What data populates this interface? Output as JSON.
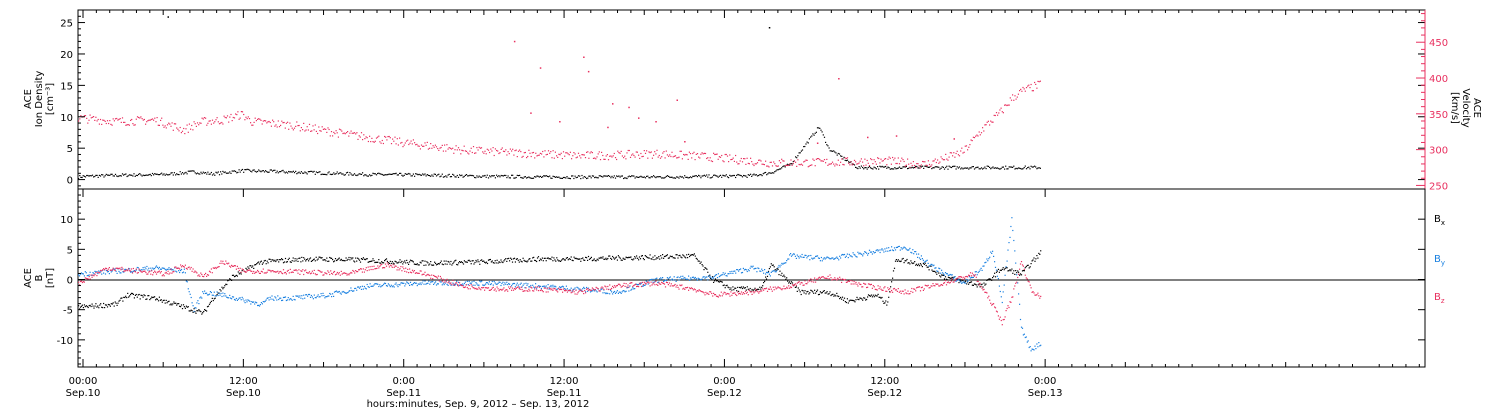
{
  "colors": {
    "density": "#000000",
    "velocity": "#e8305f",
    "bx": "#000000",
    "by": "#1a80e0",
    "bz": "#e8305f",
    "axis": "#000000"
  },
  "chart_data": [
    {
      "type": "scatter",
      "ylabel_lines": [
        "ACE",
        "Ion Density",
        "[cm⁻³]"
      ],
      "y2label_lines": [
        "ACE",
        "Velocity",
        "[km/s]"
      ],
      "ylim": [
        -1.5,
        27
      ],
      "yticks": [
        0,
        5,
        10,
        15,
        20,
        25
      ],
      "y2lim": [
        245,
        495
      ],
      "y2ticks": [
        250,
        300,
        350,
        400,
        450
      ],
      "series": [
        {
          "key": "density",
          "axis": "left",
          "knots": [
            [
              0,
              0.5
            ],
            [
              0.5,
              0.6
            ],
            [
              5,
              0.8
            ],
            [
              9,
              0.9
            ],
            [
              12,
              1.3
            ],
            [
              14,
              1.0
            ],
            [
              17,
              1.5
            ],
            [
              22,
              1.3
            ],
            [
              30,
              0.9
            ],
            [
              36,
              0.8
            ],
            [
              42,
              0.6
            ],
            [
              48,
              0.5
            ],
            [
              54,
              0.5
            ],
            [
              60,
              0.5
            ],
            [
              66,
              0.6
            ],
            [
              70,
              0.7
            ],
            [
              72,
              1.2
            ],
            [
              74,
              2.5
            ],
            [
              76,
              6.5
            ],
            [
              77,
              8.5
            ],
            [
              78,
              5.0
            ],
            [
              80,
              3.0
            ],
            [
              81,
              2.0
            ]
          ]
        },
        {
          "key": "velocity",
          "axis": "right",
          "knots": [
            [
              0,
              345
            ],
            [
              4,
              340
            ],
            [
              8,
              342
            ],
            [
              11,
              328
            ],
            [
              12,
              335
            ],
            [
              13,
              340
            ],
            [
              15,
              342
            ],
            [
              17,
              350
            ],
            [
              18,
              340
            ],
            [
              22,
              335
            ],
            [
              28,
              322
            ],
            [
              34,
              310
            ],
            [
              40,
              300
            ],
            [
              46,
              296
            ],
            [
              52,
              292
            ],
            [
              56,
              293
            ],
            [
              60,
              295
            ],
            [
              66,
              290
            ],
            [
              72,
              282
            ],
            [
              78,
              283
            ],
            [
              84,
              285
            ],
            [
              88,
              280
            ],
            [
              90,
              288
            ],
            [
              92,
              298
            ],
            [
              94,
              330
            ],
            [
              96,
              355
            ],
            [
              97,
              372
            ],
            [
              98,
              382
            ],
            [
              100,
              392
            ]
          ]
        }
      ],
      "spike_points": [
        [
          9.3,
          26
        ],
        [
          71.8,
          24.3
        ],
        [
          45.3,
          452
        ],
        [
          52.5,
          430
        ],
        [
          48.0,
          415
        ],
        [
          53.0,
          410
        ],
        [
          79.0,
          400
        ],
        [
          62.2,
          370
        ],
        [
          55.5,
          365
        ],
        [
          57.2,
          360
        ],
        [
          47.0,
          352
        ],
        [
          55.0,
          332
        ],
        [
          60.0,
          340
        ],
        [
          63.0,
          312
        ],
        [
          76.8,
          310
        ],
        [
          82.0,
          318
        ],
        [
          85.0,
          320
        ],
        [
          91.0,
          316
        ],
        [
          58.2,
          345
        ],
        [
          50.0,
          340
        ]
      ]
    },
    {
      "type": "line",
      "ylabel_lines": [
        "ACE",
        "B",
        "[nT]"
      ],
      "ylim": [
        -14.5,
        15
      ],
      "yticks": [
        -10,
        -5,
        0,
        5,
        10
      ],
      "series": [
        {
          "key": "bx",
          "name": "B",
          "subscript": "x",
          "knots": [
            [
              0,
              -4.5
            ],
            [
              4,
              -4.0
            ],
            [
              5,
              -2.5
            ],
            [
              8,
              -3.0
            ],
            [
              13,
              -5.5
            ],
            [
              14,
              -3.0
            ],
            [
              16,
              0.5
            ],
            [
              19,
              3.0
            ],
            [
              24,
              3.5
            ],
            [
              30,
              3.3
            ],
            [
              36,
              2.8
            ],
            [
              42,
              3.0
            ],
            [
              48,
              3.5
            ],
            [
              52,
              3.5
            ],
            [
              60,
              3.8
            ],
            [
              64,
              4.0
            ],
            [
              66,
              0.0
            ],
            [
              68,
              -1.5
            ],
            [
              71,
              -1.5
            ],
            [
              72,
              2.5
            ],
            [
              75,
              -2.0
            ],
            [
              78,
              -2.0
            ],
            [
              80,
              -3.5
            ],
            [
              83,
              -2.5
            ],
            [
              84,
              -4.0
            ],
            [
              85,
              3.5
            ],
            [
              88,
              2.5
            ],
            [
              90,
              0.5
            ],
            [
              94,
              -1.0
            ],
            [
              96,
              2.0
            ],
            [
              98,
              1.0
            ],
            [
              100,
              4.5
            ]
          ]
        },
        {
          "key": "by",
          "name": "B",
          "subscript": "y",
          "knots": [
            [
              0,
              1.0
            ],
            [
              4,
              1.5
            ],
            [
              8,
              2.0
            ],
            [
              11,
              1.5
            ],
            [
              12,
              -5.0
            ],
            [
              13,
              -2.0
            ],
            [
              15,
              -2.5
            ],
            [
              19,
              -4.0
            ],
            [
              20,
              -3.0
            ],
            [
              22,
              -3.0
            ],
            [
              26,
              -2.5
            ],
            [
              30,
              -1.0
            ],
            [
              36,
              -0.5
            ],
            [
              42,
              -0.5
            ],
            [
              48,
              -1.0
            ],
            [
              52,
              -1.5
            ],
            [
              56,
              -2.0
            ],
            [
              60,
              0.0
            ],
            [
              66,
              0.5
            ],
            [
              70,
              2.0
            ],
            [
              72,
              1.0
            ],
            [
              74,
              4.0
            ],
            [
              78,
              3.5
            ],
            [
              82,
              4.5
            ],
            [
              86,
              5.5
            ],
            [
              89,
              2.0
            ],
            [
              92,
              -0.5
            ],
            [
              94,
              2.0
            ],
            [
              95,
              5.0
            ],
            [
              96,
              -3.5
            ],
            [
              97,
              10.0
            ],
            [
              98,
              -8.0
            ],
            [
              99,
              -11.5
            ],
            [
              100,
              -10.5
            ]
          ]
        },
        {
          "key": "bz",
          "name": "B",
          "subscript": "z",
          "knots": [
            [
              0,
              -0.5
            ],
            [
              3,
              2.0
            ],
            [
              6,
              1.5
            ],
            [
              9,
              1.0
            ],
            [
              11,
              2.5
            ],
            [
              13,
              0.5
            ],
            [
              15,
              3.0
            ],
            [
              17,
              1.5
            ],
            [
              20,
              1.5
            ],
            [
              24,
              1.3
            ],
            [
              28,
              1.0
            ],
            [
              32,
              2.5
            ],
            [
              36,
              1.0
            ],
            [
              40,
              -1.0
            ],
            [
              44,
              -1.5
            ],
            [
              48,
              -1.5
            ],
            [
              52,
              -2.0
            ],
            [
              56,
              -1.0
            ],
            [
              60,
              -0.5
            ],
            [
              64,
              -1.5
            ],
            [
              66,
              -2.5
            ],
            [
              70,
              -2.0
            ],
            [
              74,
              -1.0
            ],
            [
              78,
              0.5
            ],
            [
              82,
              -1.0
            ],
            [
              86,
              -2.0
            ],
            [
              90,
              -0.5
            ],
            [
              93,
              1.0
            ],
            [
              95,
              -4.0
            ],
            [
              96,
              -7.0
            ],
            [
              97,
              -3.0
            ],
            [
              98,
              3.0
            ],
            [
              99,
              -1.5
            ],
            [
              100,
              -3.0
            ]
          ]
        }
      ]
    }
  ],
  "x_axis": {
    "ticks": [
      {
        "time": "00:00",
        "date": "Sep.10"
      },
      {
        "time": "12:00",
        "date": "Sep.10"
      },
      {
        "time": "0:00",
        "date": "Sep.11"
      },
      {
        "time": "12:00",
        "date": "Sep.11"
      },
      {
        "time": "0:00",
        "date": "Sep.12"
      },
      {
        "time": "12:00",
        "date": "Sep.12"
      },
      {
        "time": "0:00",
        "date": "Sep.13"
      }
    ],
    "label": "hours:minutes, Sep.  9, 2012 – Sep. 13, 2012"
  }
}
